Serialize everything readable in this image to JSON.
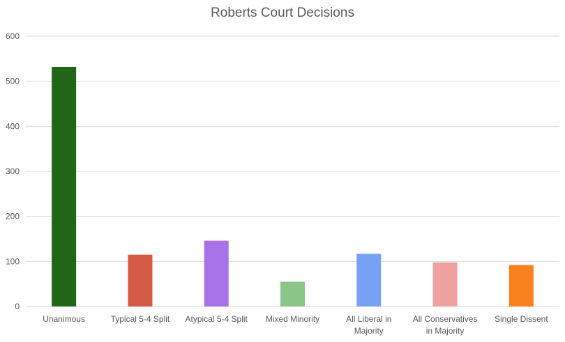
{
  "chart_data": {
    "type": "bar",
    "title": "Roberts Court Decisions",
    "xlabel": "",
    "ylabel": "",
    "ylim": [
      0,
      600
    ],
    "yticks": [
      0,
      100,
      200,
      300,
      400,
      500,
      600
    ],
    "grid": true,
    "legend": "none",
    "categories": [
      "Unanimous",
      "Typical 5-4 Split",
      "Atypical 5-4 Split",
      "Mixed Minority",
      "All Liberal in Majority",
      "All Conservatives in Majority",
      "Single Dissent"
    ],
    "category_label_lines": [
      [
        "Unanimous"
      ],
      [
        "Typical 5-4 Split"
      ],
      [
        "Atypical 5-4 Split"
      ],
      [
        "Mixed Minority"
      ],
      [
        "All Liberal in",
        "Majority"
      ],
      [
        "All Conservatives",
        "in Majority"
      ],
      [
        "Single Dissent"
      ]
    ],
    "values": [
      532,
      115,
      146,
      55,
      117,
      98,
      92
    ],
    "colors": [
      "#226519",
      "#d55b47",
      "#a872e8",
      "#8bc688",
      "#78a1f6",
      "#eea19f",
      "#f9821d"
    ]
  }
}
